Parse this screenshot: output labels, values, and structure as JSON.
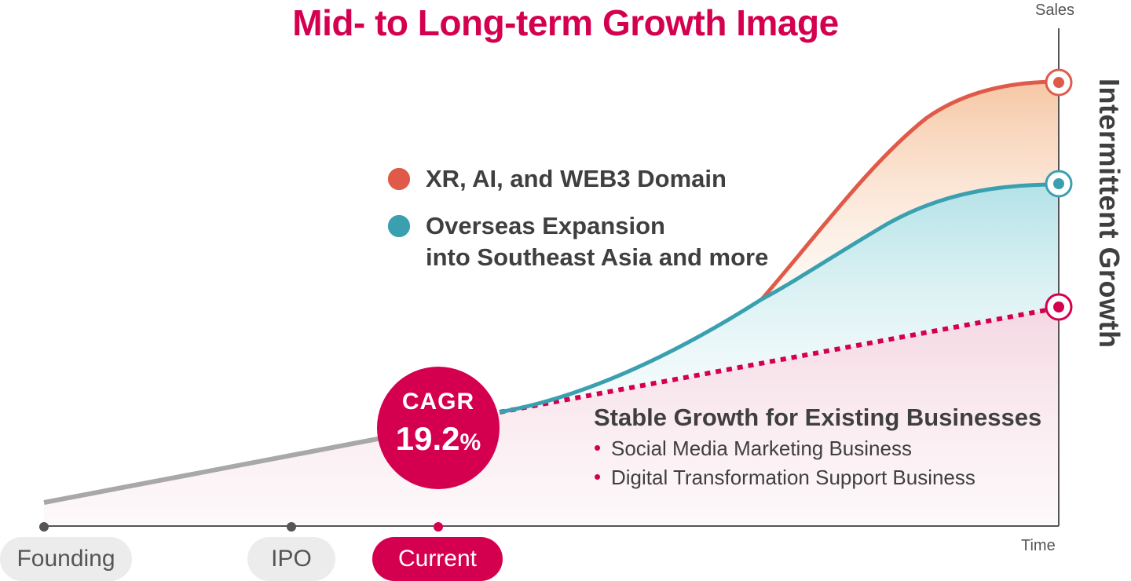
{
  "title": "Mid- to Long-term Growth Image",
  "colors": {
    "accent": "#d4004f",
    "orange_line": "#e05a4a",
    "teal_line": "#3aa0b0",
    "baseline_grey": "#a8a8a8",
    "text_dark": "#3f3f3f"
  },
  "axes": {
    "y_label": "Sales",
    "x_label": "Time"
  },
  "legend": [
    {
      "label": "XR, AI, and WEB3 Domain",
      "color": "#e05a4a",
      "icon": "target-dot-icon"
    },
    {
      "label": "Overseas Expansion",
      "label2": "into Southeast Asia and more",
      "color": "#3aa0b0",
      "icon": "target-dot-icon"
    }
  ],
  "cagr": {
    "label": "CAGR",
    "value": "19.2",
    "unit": "%"
  },
  "stable": {
    "heading": "Stable Growth for Existing Businesses",
    "items": [
      "Social Media Marketing Business",
      "Digital Transformation Support Business"
    ]
  },
  "vertical_label": "Intermittent Growth",
  "milestones": [
    {
      "label": "Founding",
      "style": "grey"
    },
    {
      "label": "IPO",
      "style": "grey"
    },
    {
      "label": "Current",
      "style": "red"
    }
  ],
  "chart_data": {
    "type": "area",
    "title": "Mid- to Long-term Growth Image",
    "xlabel": "Time",
    "ylabel": "Sales",
    "x_tick_labels": [
      "Founding",
      "IPO",
      "Current"
    ],
    "grid": false,
    "series": [
      {
        "name": "XR, AI, and WEB3 Domain",
        "style": "solid",
        "trend": "s-curve",
        "end_level": "highest"
      },
      {
        "name": "Overseas Expansion into Southeast Asia and more",
        "style": "solid",
        "trend": "s-curve",
        "end_level": "middle"
      },
      {
        "name": "Stable Growth for Existing Businesses",
        "style": "dotted",
        "trend": "linear",
        "growth_rate": "CAGR 19.2%",
        "end_level": "lowest"
      }
    ]
  }
}
